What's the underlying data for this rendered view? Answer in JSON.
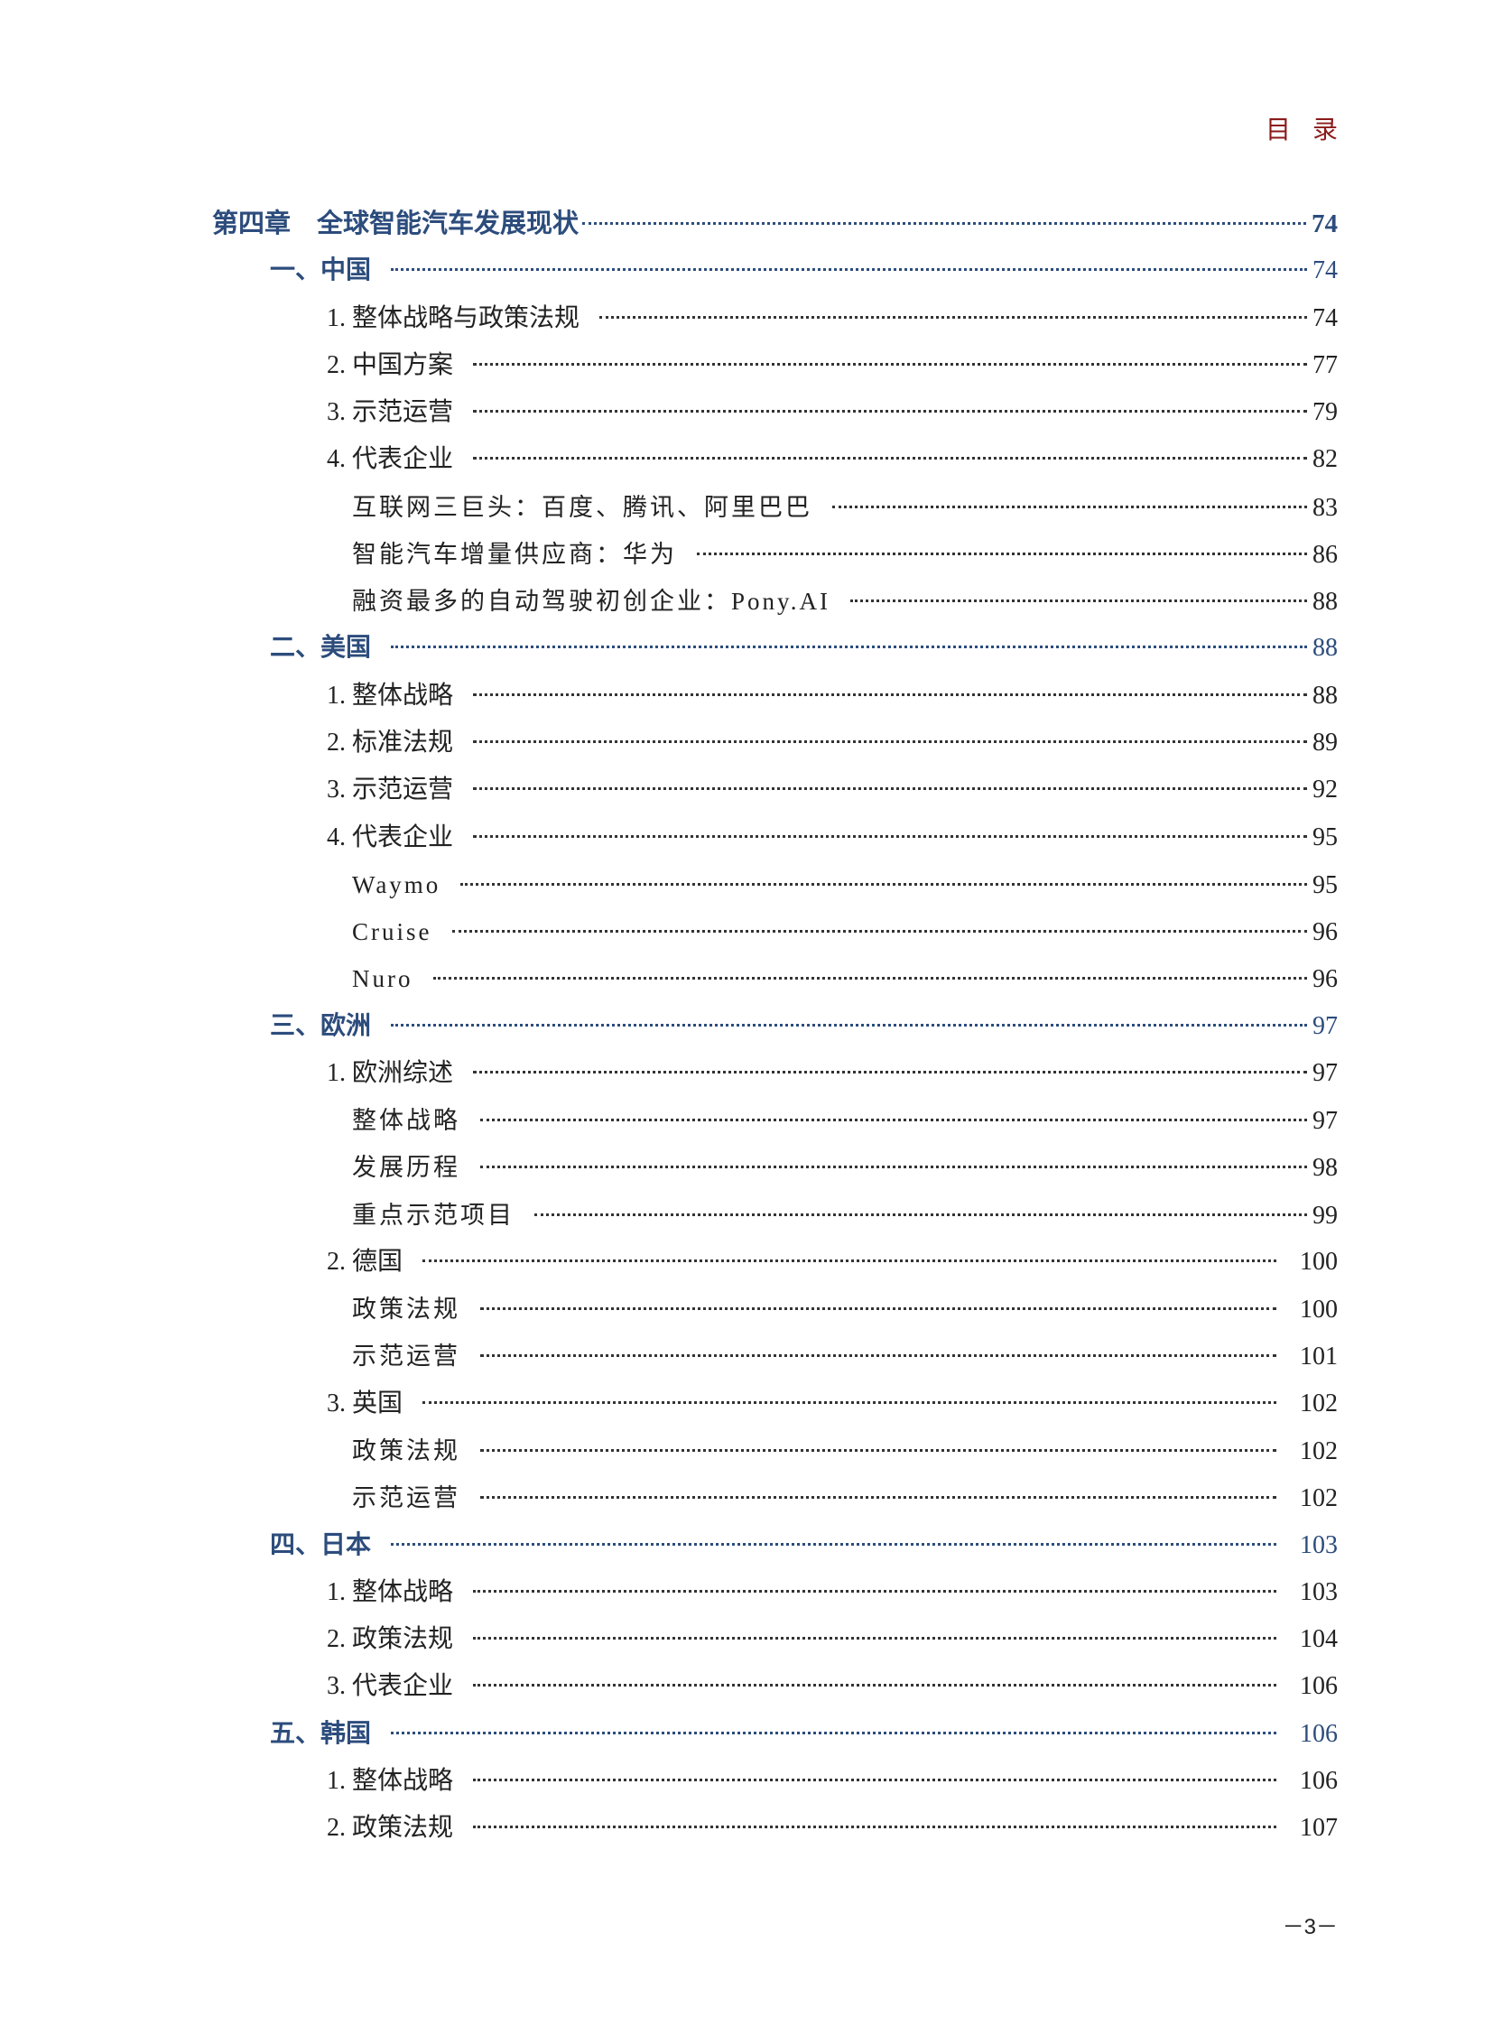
{
  "header": {
    "title": "目录"
  },
  "toc": [
    {
      "level": 0,
      "label": "第四章　全球智能汽车发展现状",
      "page": "74"
    },
    {
      "level": 1,
      "label": "一、中国",
      "page": "74"
    },
    {
      "level": 2,
      "label": "1. 整体战略与政策法规",
      "page": "74"
    },
    {
      "level": 2,
      "label": "2. 中国方案",
      "page": "77"
    },
    {
      "level": 2,
      "label": "3. 示范运营",
      "page": "79"
    },
    {
      "level": 2,
      "label": "4. 代表企业",
      "page": "82"
    },
    {
      "level": 3,
      "label": "互联网三巨头：百度、腾讯、阿里巴巴",
      "page": "83"
    },
    {
      "level": 3,
      "label": "智能汽车增量供应商：华为",
      "page": "86"
    },
    {
      "level": 3,
      "label": "融资最多的自动驾驶初创企业：Pony.AI",
      "page": "88"
    },
    {
      "level": 1,
      "label": "二、美国",
      "page": "88"
    },
    {
      "level": 2,
      "label": "1. 整体战略",
      "page": "88"
    },
    {
      "level": 2,
      "label": "2. 标准法规",
      "page": "89"
    },
    {
      "level": 2,
      "label": "3. 示范运营",
      "page": "92"
    },
    {
      "level": 2,
      "label": "4. 代表企业",
      "page": "95"
    },
    {
      "level": 3,
      "label": "Waymo",
      "page": "95"
    },
    {
      "level": 3,
      "label": "Cruise",
      "page": "96"
    },
    {
      "level": 3,
      "label": "Nuro",
      "page": "96"
    },
    {
      "level": 1,
      "label": "三、欧洲",
      "page": "97"
    },
    {
      "level": 2,
      "label": "1. 欧洲综述",
      "page": "97"
    },
    {
      "level": 3,
      "label": "整体战略",
      "page": "97"
    },
    {
      "level": 3,
      "label": "发展历程",
      "page": "98"
    },
    {
      "level": 3,
      "label": "重点示范项目",
      "page": "99"
    },
    {
      "level": 2,
      "label": "2. 德国",
      "page": "100"
    },
    {
      "level": 3,
      "label": "政策法规",
      "page": "100"
    },
    {
      "level": 3,
      "label": "示范运营",
      "page": "101"
    },
    {
      "level": 2,
      "label": "3. 英国",
      "page": "102"
    },
    {
      "level": 3,
      "label": "政策法规",
      "page": "102"
    },
    {
      "level": 3,
      "label": "示范运营",
      "page": "102"
    },
    {
      "level": 1,
      "label": "四、日本",
      "page": "103"
    },
    {
      "level": 2,
      "label": "1. 整体战略",
      "page": "103"
    },
    {
      "level": 2,
      "label": "2. 政策法规",
      "page": "104"
    },
    {
      "level": 2,
      "label": "3. 代表企业",
      "page": "106"
    },
    {
      "level": 1,
      "label": "五、韩国",
      "page": "106"
    },
    {
      "level": 2,
      "label": "1. 整体战略",
      "page": "106"
    },
    {
      "level": 2,
      "label": "2. 政策法规",
      "page": "107"
    }
  ],
  "footer": {
    "page_number": "－3－"
  },
  "colors": {
    "heading_blue": "#2c4c7c",
    "header_red": "#8b1a1a",
    "text": "#222222"
  }
}
